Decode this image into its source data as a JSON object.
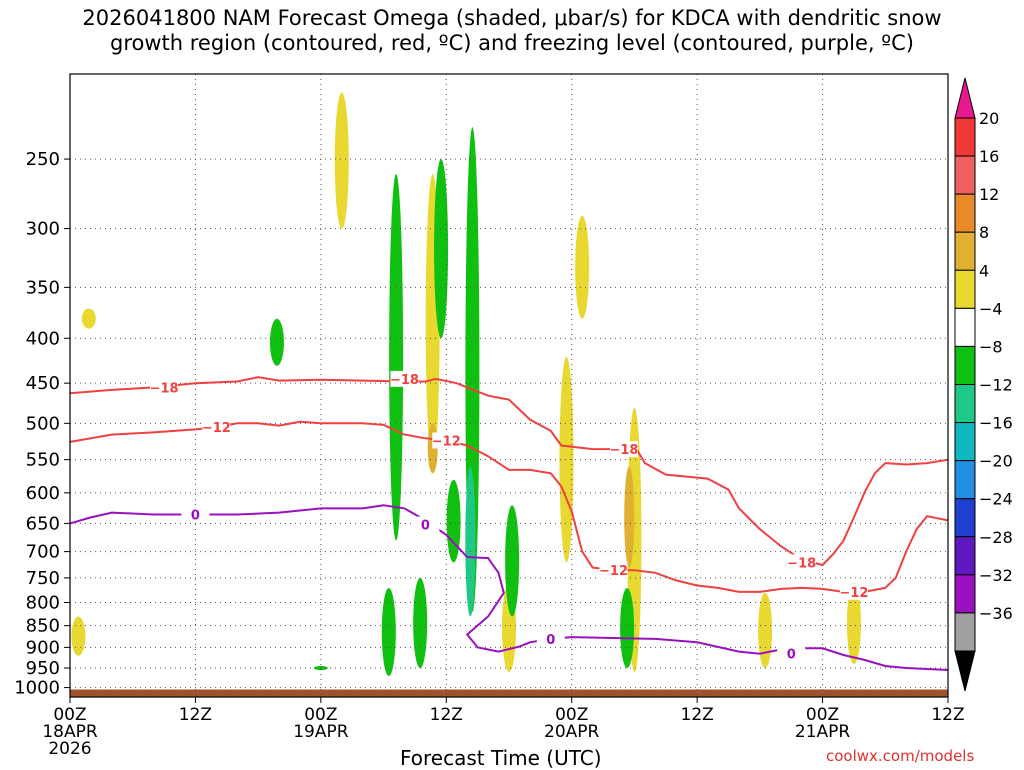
{
  "title_line1": "2026041800 NAM Forecast Omega (shaded, μbar/s) for KDCA with dendritic snow",
  "title_line2": "growth region (contoured, red, ºC) and freezing level (contoured, purple, ºC)",
  "credit": "coolwx.com/models",
  "chart_data": {
    "type": "heatmap",
    "xlabel": "Forecast Time (UTC)",
    "x_range_hours": [
      0,
      84
    ],
    "x_ticks": [
      {
        "hour": 0,
        "label": "00Z",
        "date": "18APR",
        "year": "2026"
      },
      {
        "hour": 12,
        "label": "12Z",
        "date": "",
        "year": ""
      },
      {
        "hour": 24,
        "label": "00Z",
        "date": "19APR",
        "year": ""
      },
      {
        "hour": 36,
        "label": "12Z",
        "date": "",
        "year": ""
      },
      {
        "hour": 48,
        "label": "00Z",
        "date": "20APR",
        "year": ""
      },
      {
        "hour": 60,
        "label": "12Z",
        "date": "",
        "year": ""
      },
      {
        "hour": 72,
        "label": "00Z",
        "date": "21APR",
        "year": ""
      },
      {
        "hour": 84,
        "label": "12Z",
        "date": "",
        "year": ""
      }
    ],
    "ylabel": "",
    "y_scale": "log-pressure",
    "y_range_hpa": [
      1025,
      200
    ],
    "y_ticks": [
      250,
      300,
      350,
      400,
      450,
      500,
      550,
      600,
      650,
      700,
      750,
      800,
      850,
      900,
      950,
      1000
    ],
    "colorbar": {
      "labels": [
        "20",
        "16",
        "12",
        "8",
        "4",
        "−4",
        "−8",
        "−12",
        "−16",
        "−20",
        "−24",
        "−28",
        "−32",
        "−36"
      ],
      "colors": [
        "#e8188e",
        "#f03838",
        "#f06060",
        "#e88a2a",
        "#e0b030",
        "#e8d830",
        "#ffffff",
        "#10c010",
        "#20c888",
        "#10b8c0",
        "#2090e0",
        "#2040d0",
        "#6018c0",
        "#9a10c0",
        "#a0a0a0",
        "#000000"
      ]
    },
    "contours": [
      {
        "level": "-18",
        "color": "#f04040",
        "label_at": [
          [
            9,
            455
          ],
          [
            32,
            445
          ],
          [
            53,
            535
          ],
          [
            70,
            720
          ]
        ],
        "points": [
          [
            0,
            462
          ],
          [
            4,
            458
          ],
          [
            8,
            455
          ],
          [
            12,
            450
          ],
          [
            16,
            448
          ],
          [
            18,
            443
          ],
          [
            20,
            447
          ],
          [
            24,
            446
          ],
          [
            28,
            447
          ],
          [
            32,
            448
          ],
          [
            34,
            448
          ],
          [
            35,
            445
          ],
          [
            37,
            450
          ],
          [
            38,
            455
          ],
          [
            40,
            465
          ],
          [
            42,
            470
          ],
          [
            44,
            495
          ],
          [
            46,
            510
          ],
          [
            47,
            530
          ],
          [
            50,
            535
          ],
          [
            52,
            535
          ],
          [
            53,
            535
          ],
          [
            54,
            530
          ],
          [
            55,
            555
          ],
          [
            57,
            572
          ],
          [
            59,
            575
          ],
          [
            61,
            578
          ],
          [
            63,
            595
          ],
          [
            64,
            625
          ],
          [
            66,
            660
          ],
          [
            68,
            690
          ],
          [
            70,
            715
          ],
          [
            72,
            725
          ],
          [
            73,
            705
          ],
          [
            74,
            680
          ],
          [
            75,
            640
          ],
          [
            76,
            600
          ],
          [
            77,
            570
          ],
          [
            78,
            555
          ],
          [
            80,
            557
          ],
          [
            82,
            555
          ],
          [
            84,
            550
          ]
        ]
      },
      {
        "level": "-12",
        "color": "#f04040",
        "label_at": [
          [
            14,
            505
          ],
          [
            36,
            523
          ],
          [
            52,
            735
          ],
          [
            75,
            778
          ]
        ],
        "points": [
          [
            0,
            525
          ],
          [
            4,
            515
          ],
          [
            8,
            512
          ],
          [
            12,
            508
          ],
          [
            14,
            505
          ],
          [
            16,
            500
          ],
          [
            18,
            500
          ],
          [
            20,
            503
          ],
          [
            22,
            498
          ],
          [
            24,
            500
          ],
          [
            28,
            500
          ],
          [
            30,
            502
          ],
          [
            32,
            515
          ],
          [
            34,
            520
          ],
          [
            36,
            523
          ],
          [
            38,
            530
          ],
          [
            40,
            545
          ],
          [
            42,
            565
          ],
          [
            44,
            565
          ],
          [
            46,
            570
          ],
          [
            47,
            590
          ],
          [
            48,
            630
          ],
          [
            49,
            700
          ],
          [
            50,
            730
          ],
          [
            52,
            735
          ],
          [
            54,
            735
          ],
          [
            56,
            740
          ],
          [
            58,
            755
          ],
          [
            60,
            765
          ],
          [
            62,
            770
          ],
          [
            64,
            778
          ],
          [
            66,
            778
          ],
          [
            68,
            772
          ],
          [
            70,
            770
          ],
          [
            72,
            772
          ],
          [
            74,
            778
          ],
          [
            76,
            778
          ],
          [
            78,
            770
          ],
          [
            79,
            750
          ],
          [
            80,
            700
          ],
          [
            81,
            660
          ],
          [
            82,
            638
          ],
          [
            84,
            645
          ]
        ]
      },
      {
        "level": "0",
        "color": "#9a10c0",
        "label_at": [
          [
            12,
            635
          ],
          [
            34,
            652
          ],
          [
            46,
            880
          ],
          [
            69,
            915
          ]
        ],
        "points": [
          [
            0,
            650
          ],
          [
            2,
            640
          ],
          [
            4,
            632
          ],
          [
            8,
            635
          ],
          [
            12,
            635
          ],
          [
            16,
            635
          ],
          [
            20,
            632
          ],
          [
            24,
            625
          ],
          [
            26,
            625
          ],
          [
            28,
            625
          ],
          [
            30,
            620
          ],
          [
            32,
            625
          ],
          [
            34,
            645
          ],
          [
            36,
            670
          ],
          [
            38,
            710
          ],
          [
            40,
            712
          ],
          [
            41,
            740
          ],
          [
            41.5,
            780
          ],
          [
            40,
            830
          ],
          [
            38,
            870
          ],
          [
            39,
            900
          ],
          [
            41,
            910
          ],
          [
            43,
            898
          ],
          [
            44,
            888
          ],
          [
            46,
            880
          ],
          [
            48,
            876
          ],
          [
            52,
            878
          ],
          [
            56,
            880
          ],
          [
            60,
            888
          ],
          [
            64,
            910
          ],
          [
            66,
            915
          ],
          [
            68,
            905
          ],
          [
            70,
            902
          ],
          [
            72,
            902
          ],
          [
            74,
            918
          ],
          [
            76,
            930
          ],
          [
            78,
            945
          ],
          [
            80,
            950
          ],
          [
            84,
            955
          ]
        ]
      }
    ],
    "shaded_regions": [
      {
        "value": 6,
        "hour": 1.8,
        "p_top": 370,
        "p_bot": 390
      },
      {
        "value": 6,
        "hour": 0.8,
        "p_top": 830,
        "p_bot": 920
      },
      {
        "value": 6,
        "hour": 26,
        "p_top": 210,
        "p_bot": 300
      },
      {
        "value": 6,
        "hour": 34.7,
        "p_top": 260,
        "p_bot": 560
      },
      {
        "value": 10,
        "hour": 34.7,
        "p_top": 500,
        "p_bot": 570
      },
      {
        "value": 6,
        "hour": 42,
        "p_top": 760,
        "p_bot": 960
      },
      {
        "value": 6,
        "hour": 49,
        "p_top": 290,
        "p_bot": 380
      },
      {
        "value": 6,
        "hour": 47.5,
        "p_top": 420,
        "p_bot": 720
      },
      {
        "value": 6,
        "hour": 54,
        "p_top": 480,
        "p_bot": 960
      },
      {
        "value": 10,
        "hour": 53.5,
        "p_top": 560,
        "p_bot": 730
      },
      {
        "value": 6,
        "hour": 66.5,
        "p_top": 780,
        "p_bot": 950
      },
      {
        "value": 6,
        "hour": 75,
        "p_top": 760,
        "p_bot": 940
      },
      {
        "value": -6,
        "hour": 19.8,
        "p_top": 380,
        "p_bot": 430
      },
      {
        "value": -6,
        "hour": 24,
        "p_top": 945,
        "p_bot": 955
      },
      {
        "value": -6,
        "hour": 31.2,
        "p_top": 260,
        "p_bot": 680
      },
      {
        "value": -6,
        "hour": 33.5,
        "p_top": 750,
        "p_bot": 950
      },
      {
        "value": -6,
        "hour": 30.5,
        "p_top": 770,
        "p_bot": 970
      },
      {
        "value": -6,
        "hour": 36.7,
        "p_top": 580,
        "p_bot": 720
      },
      {
        "value": -6,
        "hour": 38.5,
        "p_top": 230,
        "p_bot": 820
      },
      {
        "value": -6,
        "hour": 42.3,
        "p_top": 620,
        "p_bot": 830
      },
      {
        "value": -10,
        "hour": 38.3,
        "p_top": 560,
        "p_bot": 830
      },
      {
        "value": -6,
        "hour": 35.5,
        "p_top": 250,
        "p_bot": 400
      },
      {
        "value": -6,
        "hour": 53.3,
        "p_top": 770,
        "p_bot": 950
      }
    ]
  }
}
